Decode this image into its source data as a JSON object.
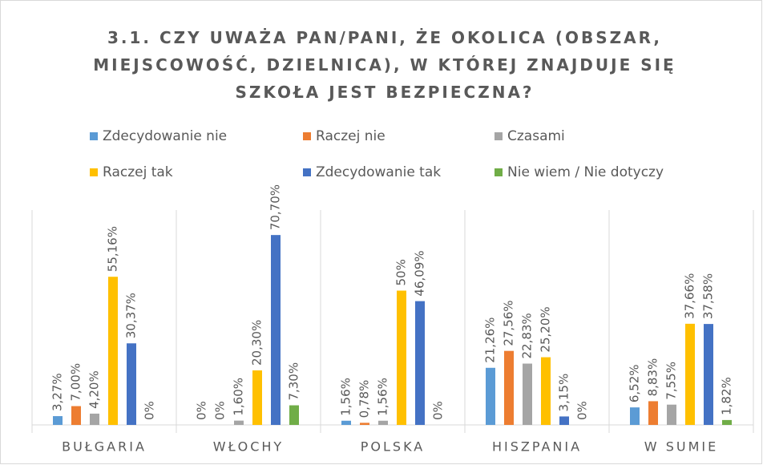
{
  "chart_data": {
    "type": "bar",
    "title": "3.1. CZY UWAŻA PAN/PANI, ŻE OKOLICA (OBSZAR, MIEJSCOWOŚĆ, DZIELNICA), W KTÓREJ ZNAJDUJE SIĘ SZKOŁA JEST BEZPIECZNA?",
    "categories": [
      "BUŁGARIA",
      "WŁOCHY",
      "POLSKA",
      "HISZPANIA",
      "W SUMIE"
    ],
    "series": [
      {
        "name": "Zdecydowanie nie",
        "color": "#5b9bd5",
        "values": [
          3.27,
          0,
          1.56,
          21.26,
          6.52
        ],
        "value_labels": [
          "3,27%",
          "0%",
          "1,56%",
          "21,26%",
          "6,52%"
        ]
      },
      {
        "name": "Raczej nie",
        "color": "#ed7d31",
        "values": [
          7.0,
          0,
          0.78,
          27.56,
          8.83
        ],
        "value_labels": [
          "7,00%",
          "0%",
          "0,78%",
          "27,56%",
          "8,83%"
        ]
      },
      {
        "name": "Czasami",
        "color": "#a5a5a5",
        "values": [
          4.2,
          1.6,
          1.56,
          22.83,
          7.55
        ],
        "value_labels": [
          "4,20%",
          "1,60%",
          "1,56%",
          "22,83%",
          "7,55%"
        ]
      },
      {
        "name": "Raczej tak",
        "color": "#ffc000",
        "values": [
          55.16,
          20.3,
          50,
          25.2,
          37.66
        ],
        "value_labels": [
          "55,16%",
          "20,30%",
          "50%",
          "25,20%",
          "37,66%"
        ]
      },
      {
        "name": "Zdecydowanie tak",
        "color": "#4472c4",
        "values": [
          30.37,
          70.7,
          46.09,
          3.15,
          37.58
        ],
        "value_labels": [
          "30,37%",
          "70,70%",
          "46,09%",
          "3,15%",
          "37,58%"
        ]
      },
      {
        "name": "Nie wiem / Nie dotyczy",
        "color": "#70ad47",
        "values": [
          0,
          7.3,
          0,
          0,
          1.82
        ],
        "value_labels": [
          "0%",
          "7,30%",
          "0%",
          "0%",
          "1,82%"
        ]
      }
    ],
    "ylim": [
      0,
      80
    ]
  }
}
